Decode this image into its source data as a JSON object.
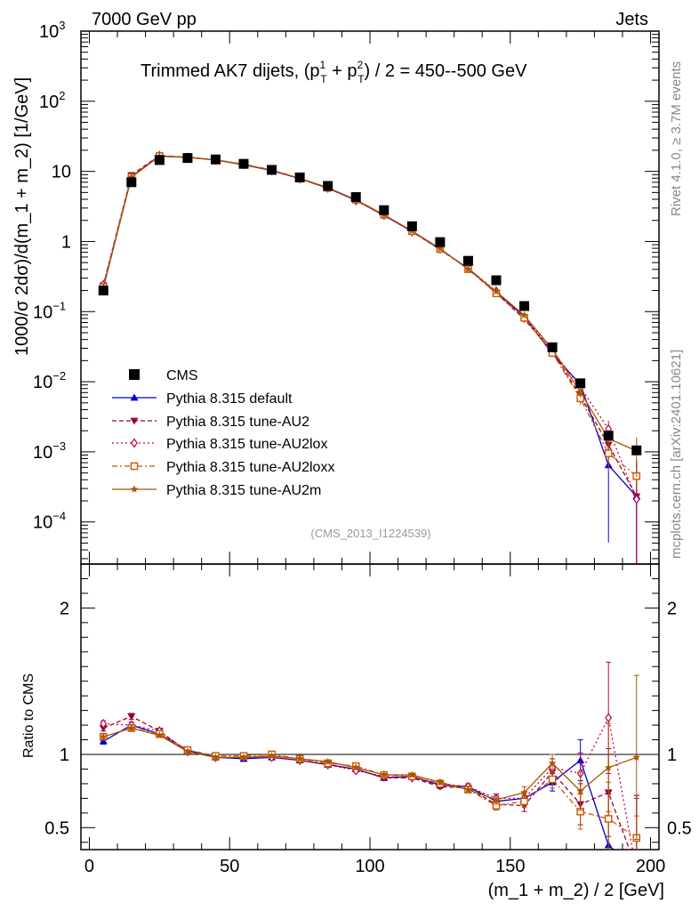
{
  "header": {
    "left": "7000 GeV pp",
    "right": "Jets"
  },
  "side": {
    "rivet": "Rivet 4.1.0, ≥ 3.7M events",
    "mcplots": "mcplots.cern.ch [arXiv:2401.10621]"
  },
  "chart_data": {
    "type": "line",
    "title_parts": {
      "t1": "Trimmed AK7 dijets, (p",
      "sup1": "1",
      "sub1": "T",
      "t2": " + p",
      "sup2": "2",
      "sub2": "T",
      "t3": ") / 2 = 450--500 GeV"
    },
    "watermark": "(CMS_2013_I1224539)",
    "ylabel_main": "1000/σ  2dσ)/d(m_1 + m_2) [1/GeV]",
    "ylabel_ratio": "Ratio to CMS",
    "xlabel": "(m_1 + m_2) / 2 [GeV]",
    "xlim": [
      -3,
      203
    ],
    "ylim_main_log10": [
      -4.6,
      3
    ],
    "ylim_ratio": [
      0.35,
      2.3
    ],
    "x_ticks": [
      0,
      50,
      100,
      150,
      200
    ],
    "x_tick_labels": [
      "0",
      "50",
      "100",
      "150",
      "200"
    ],
    "y_main_ticks": [
      {
        "exp": 3,
        "label": "10",
        "sup": "3"
      },
      {
        "exp": 2,
        "label": "10",
        "sup": "2"
      },
      {
        "exp": 1,
        "label": "10",
        "sup": ""
      },
      {
        "exp": 0,
        "label": "1",
        "sup": ""
      },
      {
        "exp": -1,
        "label": "10",
        "sup": "−1"
      },
      {
        "exp": -2,
        "label": "10",
        "sup": "−2"
      },
      {
        "exp": -3,
        "label": "10",
        "sup": "−3"
      },
      {
        "exp": -4,
        "label": "10",
        "sup": "−4"
      }
    ],
    "y_ratio_ticks": [
      {
        "value": 2,
        "label": "2"
      },
      {
        "value": 1,
        "label": "1"
      },
      {
        "value": 0.5,
        "label": "0.5"
      }
    ],
    "x": [
      5,
      15,
      25,
      35,
      45,
      55,
      65,
      75,
      85,
      95,
      105,
      115,
      125,
      135,
      145,
      155,
      165,
      175,
      185,
      195
    ],
    "data": {
      "name": "CMS",
      "values": [
        0.2,
        7.0,
        14.5,
        15.5,
        14.8,
        12.8,
        10.5,
        8.2,
        6.2,
        4.3,
        2.8,
        1.65,
        0.98,
        0.53,
        0.28,
        0.12,
        0.031,
        0.0095,
        0.0017,
        0.00105
      ]
    },
    "series": [
      {
        "name": "Pythia 8.315 default",
        "color": "#0000cc",
        "marker": "triangle-up",
        "dash": "",
        "ratio": [
          1.09,
          1.2,
          1.14,
          1.03,
          0.98,
          0.97,
          0.98,
          0.96,
          0.93,
          0.9,
          0.84,
          0.85,
          0.79,
          0.78,
          0.68,
          0.7,
          0.81,
          0.96,
          0.38,
          0.22
        ],
        "err": [
          0.02,
          0.02,
          0.01,
          0.01,
          0.01,
          0.01,
          0.01,
          0.01,
          0.01,
          0.01,
          0.01,
          0.01,
          0.015,
          0.02,
          0.03,
          0.04,
          0.06,
          0.14,
          0.35,
          0.5
        ]
      },
      {
        "name": "Pythia 8.315 tune-AU2",
        "color": "#990033",
        "marker": "triangle-down",
        "dash": "5,3",
        "ratio": [
          1.18,
          1.26,
          1.16,
          1.02,
          0.98,
          0.98,
          0.98,
          0.96,
          0.93,
          0.9,
          0.84,
          0.84,
          0.78,
          0.77,
          0.66,
          0.65,
          0.88,
          0.66,
          0.74,
          0.22
        ],
        "err": [
          0.02,
          0.02,
          0.01,
          0.01,
          0.01,
          0.01,
          0.01,
          0.01,
          0.01,
          0.01,
          0.01,
          0.01,
          0.015,
          0.02,
          0.03,
          0.04,
          0.06,
          0.14,
          0.3,
          0.5
        ]
      },
      {
        "name": "Pythia 8.315 tune-AU2lox",
        "color": "#bb0055",
        "marker": "diamond-open",
        "dash": "2,3",
        "ratio": [
          1.21,
          1.2,
          1.16,
          1.02,
          0.98,
          0.98,
          0.98,
          0.96,
          0.93,
          0.89,
          0.85,
          0.84,
          0.8,
          0.78,
          0.7,
          0.7,
          0.91,
          0.87,
          1.25,
          0.2
        ],
        "err": [
          0.02,
          0.02,
          0.01,
          0.01,
          0.01,
          0.01,
          0.01,
          0.01,
          0.01,
          0.01,
          0.01,
          0.01,
          0.015,
          0.02,
          0.03,
          0.04,
          0.06,
          0.14,
          0.38,
          0.5
        ]
      },
      {
        "name": "Pythia 8.315 tune-AU2loxx",
        "color": "#cc5500",
        "marker": "square-open",
        "dash": "6,3,2,3",
        "ratio": [
          1.12,
          1.18,
          1.14,
          1.03,
          0.99,
          0.99,
          1.0,
          0.97,
          0.94,
          0.92,
          0.86,
          0.85,
          0.8,
          0.76,
          0.65,
          0.68,
          0.83,
          0.61,
          0.56,
          0.43
        ],
        "err": [
          0.02,
          0.02,
          0.01,
          0.01,
          0.01,
          0.01,
          0.01,
          0.01,
          0.01,
          0.01,
          0.01,
          0.01,
          0.015,
          0.02,
          0.03,
          0.04,
          0.06,
          0.12,
          0.25,
          0.15
        ]
      },
      {
        "name": "Pythia 8.315 tune-AU2m",
        "color": "#aa5500",
        "marker": "star",
        "dash": "",
        "ratio": [
          1.12,
          1.18,
          1.13,
          1.02,
          0.98,
          0.98,
          0.99,
          0.97,
          0.95,
          0.91,
          0.86,
          0.86,
          0.81,
          0.76,
          0.69,
          0.74,
          0.94,
          0.75,
          0.91,
          0.98
        ],
        "err": [
          0.02,
          0.02,
          0.01,
          0.01,
          0.01,
          0.01,
          0.01,
          0.01,
          0.01,
          0.01,
          0.01,
          0.01,
          0.015,
          0.02,
          0.03,
          0.04,
          0.06,
          0.13,
          0.3,
          0.56
        ]
      }
    ]
  }
}
